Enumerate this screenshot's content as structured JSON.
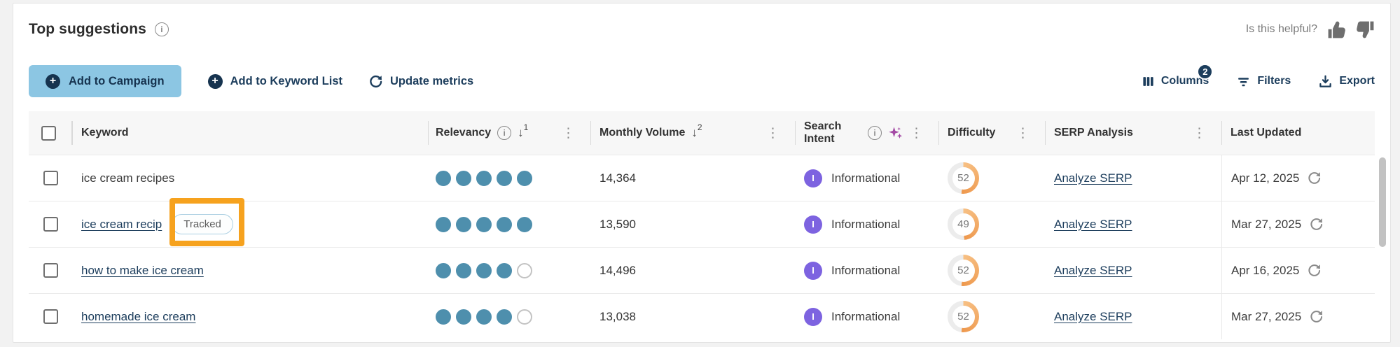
{
  "header": {
    "title": "Top suggestions",
    "helpful_label": "Is this helpful?"
  },
  "toolbar": {
    "add_to_campaign": "Add to Campaign",
    "add_to_keyword_list": "Add to Keyword List",
    "update_metrics": "Update metrics",
    "columns": "Columns",
    "columns_badge": "2",
    "filters": "Filters",
    "export": "Export"
  },
  "icons": {
    "plus": "+",
    "info": "i",
    "kebab": "⋮",
    "sort_arrow": "↓"
  },
  "table": {
    "columns": {
      "keyword": "Keyword",
      "relevancy": "Relevancy",
      "relevancy_sort_rank": "1",
      "volume": "Monthly Volume",
      "volume_sort_rank": "2",
      "intent": "Search Intent",
      "difficulty": "Difficulty",
      "serp": "SERP Analysis",
      "updated": "Last Updated"
    },
    "serp_link_label": "Analyze SERP",
    "tracked_label": "Tracked",
    "rows": [
      {
        "keyword": "ice cream recipes",
        "relevancy": 5,
        "volume": "14,364",
        "intent": "Informational",
        "intent_initial": "I",
        "difficulty": 52,
        "updated": "Apr 12, 2025"
      },
      {
        "keyword": "ice cream recip",
        "relevancy": 5,
        "volume": "13,590",
        "intent": "Informational",
        "intent_initial": "I",
        "difficulty": 49,
        "updated": "Mar 27, 2025"
      },
      {
        "keyword": "how to make ice cream",
        "relevancy": 4,
        "volume": "14,496",
        "intent": "Informational",
        "intent_initial": "I",
        "difficulty": 52,
        "updated": "Apr 16, 2025"
      },
      {
        "keyword": "homemade ice cream",
        "relevancy": 4,
        "volume": "13,038",
        "intent": "Informational",
        "intent_initial": "I",
        "difficulty": 52,
        "updated": "Mar 27, 2025"
      }
    ]
  },
  "colors": {
    "navy": "#1c3d5c",
    "button_blue": "#8cc6e3",
    "dot_teal": "#4e8fad",
    "intent_purple": "#7d63e0",
    "sparkle_purple": "#a349a4",
    "difficulty_arc_start": "#f7c084",
    "difficulty_arc_end": "#ee984d",
    "difficulty_track": "#ececec",
    "annotation_orange": "#f6a21e"
  }
}
